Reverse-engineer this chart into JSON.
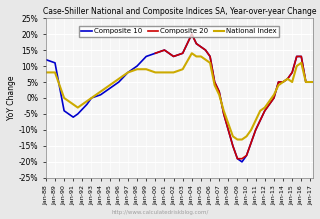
{
  "title": "Case-Shiller National and Composite Indices SA, Year-over-year Change",
  "ylabel": "YoY Change",
  "watermark": "http://www.calculatedriskblog.com/",
  "ylim": [
    -25,
    25
  ],
  "yticks": [
    -25,
    -20,
    -15,
    -10,
    -5,
    0,
    5,
    10,
    15,
    20,
    25
  ],
  "legend": [
    "Composite 10",
    "Composite 20",
    "National Index"
  ],
  "colors": {
    "comp10": "#0000CC",
    "comp20": "#CC0000",
    "national": "#CCAA00"
  },
  "bg_color": "#E8E8E8",
  "plot_bg": "#F5F5F5",
  "grid_color": "#FFFFFF",
  "x_labels": [
    "Jan-88",
    "Jan-89",
    "Jan-90",
    "Jan-91",
    "Jan-92",
    "Jan-93",
    "Jan-94",
    "Jan-95",
    "Jan-96",
    "Jan-97",
    "Jan-98",
    "Jan-99",
    "Jan-00",
    "Jan-01",
    "Jan-02",
    "Jan-03",
    "Jan-04",
    "Jan-05",
    "Jan-06",
    "Jan-07",
    "Jan-08",
    "Jan-09",
    "Jan-10",
    "Jan-11",
    "Jan-12",
    "Jan-13",
    "Jan-14",
    "Jan-15",
    "Jan-16",
    "Jan-17"
  ],
  "comp10": [
    12,
    11,
    10.5,
    10,
    -4,
    -6,
    -5,
    -3,
    -2,
    0,
    1,
    3,
    5,
    8,
    10,
    13,
    14,
    15,
    14,
    13,
    15,
    10,
    9,
    8,
    7,
    7,
    8,
    7,
    7,
    14,
    15,
    16,
    14,
    13,
    12,
    11,
    20,
    18,
    17,
    16,
    16,
    15,
    13,
    5,
    2,
    -5,
    -10,
    -13,
    -16,
    -18,
    -20,
    -18,
    -15,
    -12,
    -10,
    -7,
    -4,
    -2,
    0,
    5,
    5,
    6,
    5,
    5,
    4,
    4,
    8,
    13,
    13,
    12,
    11,
    5,
    4,
    3,
    5,
    4,
    5,
    6,
    5,
    5
  ],
  "comp20": [
    null,
    null,
    null,
    null,
    null,
    null,
    null,
    null,
    null,
    null,
    null,
    null,
    null,
    null,
    null,
    null,
    null,
    null,
    null,
    null,
    null,
    null,
    null,
    null,
    null,
    null,
    null,
    null,
    null,
    null,
    null,
    null,
    null,
    null,
    null,
    null,
    20,
    18,
    17,
    16,
    16,
    15,
    13,
    5,
    2,
    -5,
    -10,
    -13,
    -16,
    -18,
    -19,
    -18,
    -15,
    -12,
    -10,
    -7,
    -4,
    -2,
    0,
    5,
    5,
    6,
    5,
    5,
    4,
    4,
    8,
    13,
    13,
    12,
    11,
    5,
    4,
    3,
    5,
    4,
    5,
    6,
    5,
    5
  ],
  "national": [
    8,
    8,
    8,
    7,
    3,
    0,
    -2,
    -3,
    -2,
    -1,
    0,
    2,
    4,
    6,
    8,
    9,
    6,
    6,
    7,
    8,
    9,
    9,
    9,
    9,
    8,
    8,
    7,
    7,
    6,
    6,
    8,
    10,
    14,
    15,
    15,
    14,
    14,
    13,
    13,
    12,
    12,
    11,
    9,
    4,
    1,
    -4,
    -8,
    -11,
    -14,
    -16,
    -13,
    -12,
    -10,
    -8,
    -6,
    -4,
    -3,
    -1,
    1,
    4,
    5,
    6,
    6,
    5,
    4,
    4,
    5,
    10,
    11,
    10,
    9,
    5,
    4,
    4,
    5,
    5,
    5,
    5,
    5,
    5
  ]
}
